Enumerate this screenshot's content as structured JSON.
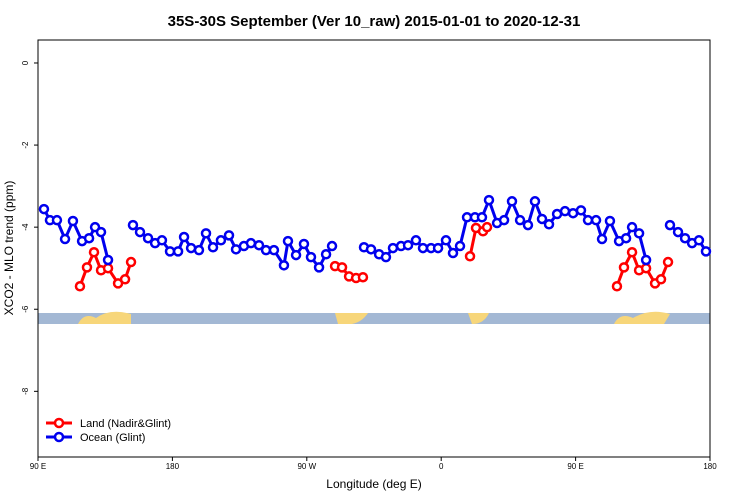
{
  "chart_data": {
    "type": "line",
    "title": "35S-30S September (Ver 10_raw)   2015-01-01 to 2020-12-31",
    "xlabel": "Longitude (deg E)",
    "ylabel": "XCO2 - MLO trend (ppm)",
    "xlim": [
      90,
      540
    ],
    "ylim": [
      -9.6,
      0.56
    ],
    "xticks": [
      {
        "value": 90,
        "label": "90 E"
      },
      {
        "value": 180,
        "label": "180"
      },
      {
        "value": 270,
        "label": "90 W"
      },
      {
        "value": 360,
        "label": "0"
      },
      {
        "value": 450,
        "label": "90 E"
      },
      {
        "value": 540,
        "label": "180"
      }
    ],
    "yticks": [
      0,
      -2,
      -4,
      -6,
      -8
    ],
    "legend": "bottom-left",
    "series": [
      {
        "name": "Land (Nadir&Glint)",
        "color": "#ff0000",
        "x": [
          118.1,
          122.8,
          127.5,
          132.2,
          136.9,
          143.6,
          148.3,
          152.3,
          null,
          288.9,
          293.6,
          298.3,
          303.0,
          307.6,
          null,
          379.3,
          383.3,
          388.0,
          390.7,
          null,
          477.7,
          482.4,
          487.8,
          492.5,
          497.2,
          503.2,
          507.2,
          511.9
        ],
        "values": [
          -5.44,
          -4.98,
          -4.61,
          -5.05,
          -5.0,
          -5.37,
          -5.27,
          -4.85,
          null,
          -4.95,
          -4.98,
          -5.2,
          -5.24,
          -5.22,
          null,
          -4.71,
          -4.02,
          -4.1,
          -4.0,
          null,
          -5.44,
          -4.98,
          -4.61,
          -5.05,
          -5.0,
          -5.37,
          -5.27,
          -4.85
        ]
      },
      {
        "name": "Ocean (Glint)",
        "color": "#0000ee",
        "x": [
          94.0,
          98.0,
          102.7,
          108.1,
          113.4,
          119.5,
          124.2,
          128.2,
          132.2,
          136.9,
          null,
          153.6,
          158.3,
          163.7,
          168.4,
          173.0,
          178.4,
          183.8,
          187.8,
          192.5,
          197.8,
          202.5,
          207.2,
          212.5,
          217.9,
          222.6,
          227.9,
          232.6,
          238.0,
          242.7,
          248.0,
          254.7,
          257.4,
          262.8,
          268.1,
          272.8,
          278.2,
          282.9,
          286.9,
          null,
          308.3,
          313.0,
          318.4,
          323.0,
          327.7,
          333.1,
          337.8,
          343.1,
          347.8,
          353.2,
          357.9,
          363.2,
          367.9,
          372.6,
          377.3,
          382.6,
          387.3,
          392.0,
          397.4,
          402.1,
          407.4,
          412.8,
          418.1,
          422.8,
          427.5,
          432.2,
          437.6,
          442.9,
          448.3,
          453.6,
          458.3,
          463.7,
          467.7,
          473.0,
          479.1,
          483.8,
          487.8,
          492.5,
          497.2,
          null,
          513.2,
          518.6,
          523.3,
          528.0,
          532.6,
          537.3
        ],
        "values": [
          -3.56,
          -3.83,
          -3.83,
          -4.29,
          -3.85,
          -4.34,
          -4.27,
          -4.0,
          -4.12,
          -4.8,
          null,
          -3.95,
          -4.12,
          -4.27,
          -4.39,
          -4.32,
          -4.59,
          -4.59,
          -4.24,
          -4.51,
          -4.56,
          -4.15,
          -4.49,
          -4.32,
          -4.2,
          -4.54,
          -4.46,
          -4.39,
          -4.44,
          -4.56,
          -4.56,
          -4.93,
          -4.34,
          -4.68,
          -4.41,
          -4.73,
          -4.98,
          -4.66,
          -4.46,
          null,
          -4.49,
          -4.54,
          -4.66,
          -4.73,
          -4.51,
          -4.46,
          -4.44,
          -4.32,
          -4.51,
          -4.51,
          -4.51,
          -4.32,
          -4.63,
          -4.46,
          -3.76,
          -3.76,
          -3.76,
          -3.34,
          -3.9,
          -3.83,
          -3.37,
          -3.83,
          -3.95,
          -3.37,
          -3.8,
          -3.93,
          -3.68,
          -3.61,
          -3.66,
          -3.59,
          -3.83,
          -3.83,
          -4.29,
          -3.85,
          -4.34,
          -4.27,
          -4.0,
          -4.15,
          -4.8,
          null,
          -3.95,
          -4.12,
          -4.27,
          -4.39,
          -4.32,
          -4.59
        ]
      }
    ]
  }
}
